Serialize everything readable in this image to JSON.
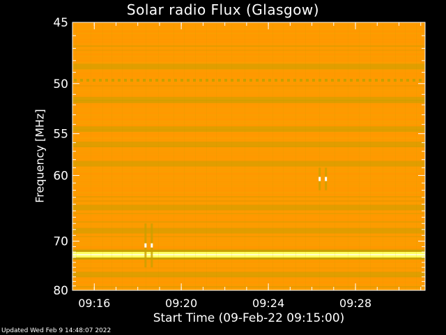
{
  "chart_data": {
    "type": "heatmap",
    "title": "Solar radio Flux (Glasgow)",
    "xlabel": "Start Time (09-Feb-22 09:15:00)",
    "ylabel": "Frequency [MHz]",
    "xlim_minutes": [
      9.25,
      9.52
    ],
    "x_ticks": [
      {
        "label": "09:16",
        "minutes": 9.2667
      },
      {
        "label": "09:20",
        "minutes": 9.3333
      },
      {
        "label": "09:24",
        "minutes": 9.4
      },
      {
        "label": "09:28",
        "minutes": 9.4667
      }
    ],
    "ylim": [
      45,
      80
    ],
    "y_scale": "reciprocal",
    "y_ticks": [
      45,
      50,
      55,
      60,
      70,
      80
    ],
    "colormap": [
      "#ff9900",
      "#f5a400",
      "#c9a000",
      "#9a9d00",
      "#ffff60"
    ],
    "bands": [
      {
        "freq": 48.5,
        "intensity": "low"
      },
      {
        "freq": 49.7,
        "intensity": "low",
        "pattern": "dotted"
      },
      {
        "freq": 51.5,
        "intensity": "low"
      },
      {
        "freq": 54.5,
        "intensity": "low"
      },
      {
        "freq": 56.2,
        "intensity": "low"
      },
      {
        "freq": 58.5,
        "intensity": "low"
      },
      {
        "freq": 64.5,
        "intensity": "low"
      },
      {
        "freq": 68.2,
        "intensity": "low"
      },
      {
        "freq": 72.5,
        "intensity": "high"
      },
      {
        "freq": 76.5,
        "intensity": "low"
      }
    ],
    "bursts": [
      {
        "time": "09:18:30",
        "freq_range": [
          67,
          75
        ]
      },
      {
        "time": "09:26:30",
        "freq_range": [
          59,
          62
        ]
      }
    ]
  },
  "footer": "Updated Wed Feb  9 14:48:07 2022"
}
